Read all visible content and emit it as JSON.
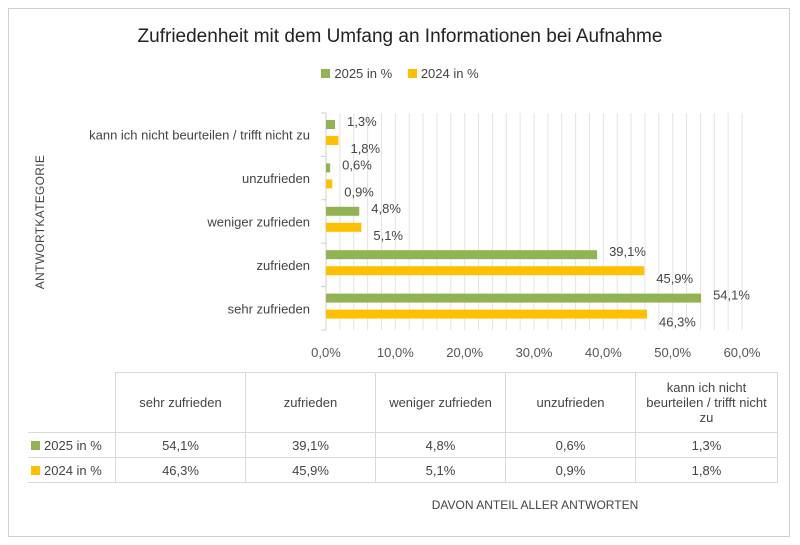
{
  "chart_data": {
    "type": "bar",
    "orientation": "horizontal",
    "title": "Zufriedenheit mit dem Umfang an Informationen bei Aufnahme",
    "xlabel": "DAVON ANTEIL ALLER ANTWORTEN",
    "ylabel": "ANTWORTKATEGORIE",
    "categories": [
      "sehr zufrieden",
      "zufrieden",
      "weniger zufrieden",
      "unzufrieden",
      "kann ich nicht beurteilen / trifft nicht zu"
    ],
    "series": [
      {
        "name": "2025 in %",
        "color": "#92B352",
        "values": [
          54.1,
          39.1,
          4.8,
          0.6,
          1.3
        ],
        "labels": [
          "54,1%",
          "39,1%",
          "4,8%",
          "0,6%",
          "1,3%"
        ]
      },
      {
        "name": "2024 in %",
        "color": "#FFC000",
        "values": [
          46.3,
          45.9,
          5.1,
          0.9,
          1.8
        ],
        "labels": [
          "46,3%",
          "45,9%",
          "5,1%",
          "0,9%",
          "1,8%"
        ]
      }
    ],
    "xlim": [
      0,
      60
    ],
    "xticks": [
      "0,0%",
      "10,0%",
      "20,0%",
      "30,0%",
      "40,0%",
      "50,0%",
      "60,0%"
    ],
    "grid": true,
    "legend": "top",
    "data_table": true
  }
}
